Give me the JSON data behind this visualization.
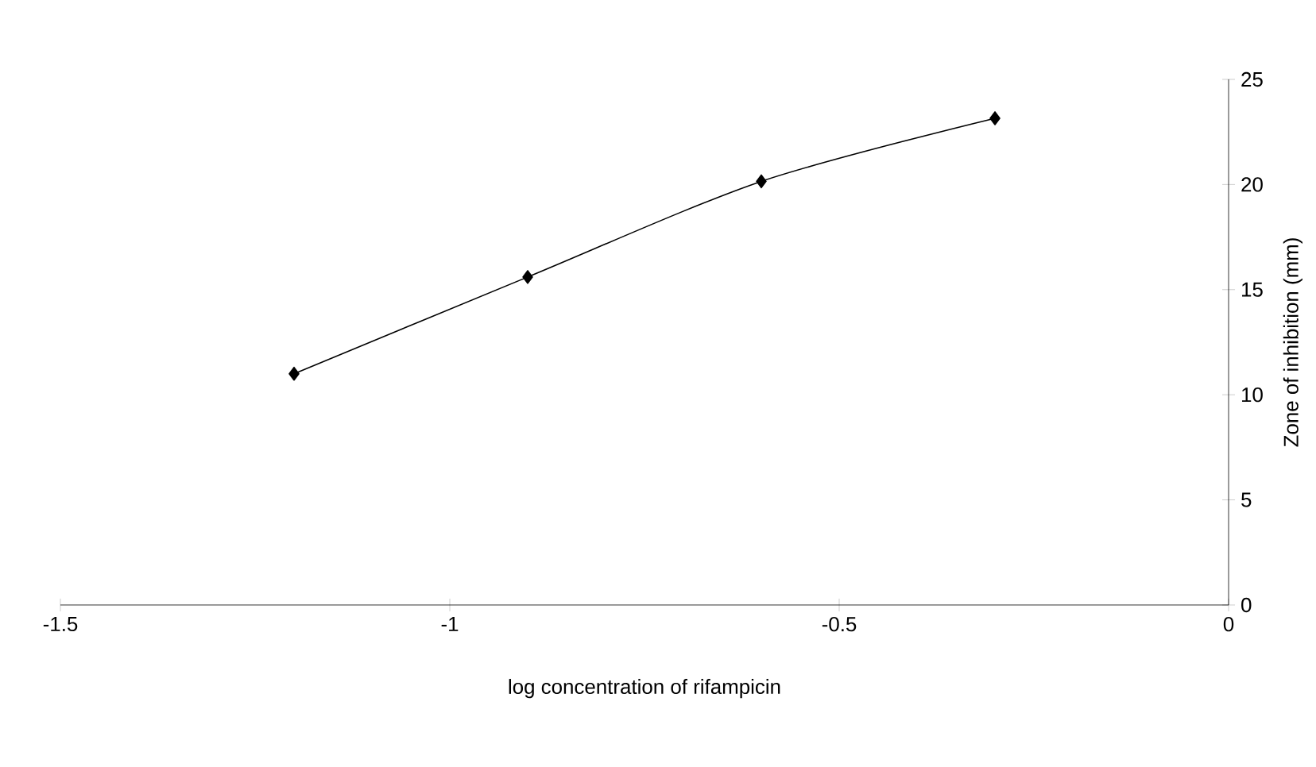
{
  "chart_data": {
    "type": "line",
    "xlabel": "log concentration of rifampicin",
    "ylabel": "Zone of inhibition (mm)",
    "x": [
      -1.2,
      -0.9,
      -0.6,
      -0.3
    ],
    "series": [
      {
        "color": "#000000",
        "values": [
          11.0,
          15.6,
          20.15,
          23.15
        ]
      }
    ],
    "xlim": [
      -1.5,
      0
    ],
    "ylim": [
      0,
      25
    ],
    "xticks": [
      -1.5,
      -1,
      -0.5,
      0
    ],
    "yticks": [
      0,
      5,
      10,
      15,
      20,
      25
    ],
    "marker": "diamond",
    "line_style": "solid",
    "grid": false
  }
}
